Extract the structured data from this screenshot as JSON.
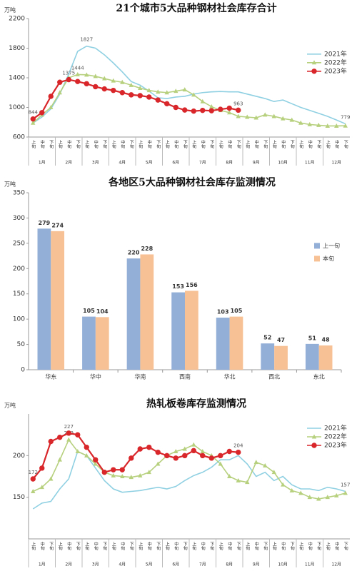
{
  "chart_data": [
    {
      "type": "line",
      "title": "21个城市5大品种钢材社会库存合计",
      "y_label": "万吨",
      "ylim": [
        600,
        2200
      ],
      "yticks": [
        600,
        1000,
        1400,
        1800,
        2200
      ],
      "grid": false,
      "legend": "right",
      "categories": [
        "上旬",
        "中旬",
        "下旬",
        "上旬",
        "中旬",
        "下旬",
        "上旬",
        "中旬",
        "下旬",
        "上旬",
        "中旬",
        "下旬",
        "上旬",
        "中旬",
        "下旬",
        "上旬",
        "中旬",
        "下旬",
        "上旬",
        "中旬",
        "下旬",
        "上旬",
        "中旬",
        "下旬",
        "上旬",
        "中旬",
        "下旬",
        "上旬",
        "中旬",
        "下旬",
        "上旬",
        "中旬",
        "下旬",
        "上旬",
        "中旬",
        "下旬"
      ],
      "x_groups": [
        "1月",
        "2月",
        "3月",
        "4月",
        "5月",
        "6月",
        "7月",
        "8月",
        "9月",
        "10月",
        "11月",
        "12月"
      ],
      "series": [
        {
          "name": "2021年",
          "color": "#8fd0e2",
          "marker": "none",
          "labels_at": [
            6,
            35
          ],
          "values": [
            790,
            870,
            980,
            1180,
            1450,
            1757,
            1827,
            1800,
            1710,
            1600,
            1480,
            1350,
            1300,
            1220,
            1130,
            1120,
            1140,
            1150,
            1180,
            1200,
            1210,
            1215,
            1210,
            1210,
            1180,
            1150,
            1120,
            1080,
            1100,
            1050,
            1000,
            960,
            920,
            880,
            830,
            779
          ]
        },
        {
          "name": "2022年",
          "color": "#b6d07e",
          "marker": "triangle",
          "labels_at": [
            5
          ],
          "values": [
            790,
            900,
            1000,
            1200,
            1400,
            1444,
            1440,
            1420,
            1390,
            1360,
            1340,
            1300,
            1260,
            1230,
            1210,
            1200,
            1220,
            1240,
            1170,
            1080,
            1010,
            960,
            930,
            880,
            870,
            860,
            900,
            880,
            850,
            830,
            790,
            770,
            760,
            750,
            750,
            752
          ]
        },
        {
          "name": "2023年",
          "color": "#d8262a",
          "marker": "circle",
          "labels_at": [
            0,
            4,
            23
          ],
          "values": [
            844,
            930,
            1150,
            1340,
            1375,
            1350,
            1320,
            1280,
            1250,
            1230,
            1200,
            1170,
            1160,
            1140,
            1100,
            1050,
            1000,
            965,
            950,
            960,
            955,
            975,
            990,
            963,
            null,
            null,
            null,
            null,
            null,
            null,
            null,
            null,
            null,
            null,
            null,
            null
          ]
        }
      ]
    },
    {
      "type": "bar",
      "title": "各地区5大品种钢材社会库存监测情况",
      "y_label": "万吨",
      "ylim": [
        0,
        350
      ],
      "yticks": [
        0,
        50,
        100,
        150,
        200,
        250,
        300,
        350
      ],
      "grid": false,
      "legend": "right",
      "data_labels": true,
      "categories": [
        "华东",
        "华中",
        "华南",
        "西南",
        "华北",
        "西北",
        "东北"
      ],
      "series": [
        {
          "name": "上一旬",
          "color": "#93afd8",
          "values": [
            279,
            105,
            220,
            153,
            103,
            52,
            51
          ]
        },
        {
          "name": "本旬",
          "color": "#f8c195",
          "values": [
            274,
            104,
            228,
            156,
            105,
            47,
            48
          ]
        }
      ]
    },
    {
      "type": "line",
      "title": "热轧板卷库存监测情况",
      "y_label": "万吨",
      "ylim": [
        100,
        250
      ],
      "yticks": [
        150,
        200
      ],
      "grid": false,
      "legend": "upper right",
      "categories": [
        "上旬",
        "中旬",
        "下旬",
        "上旬",
        "中旬",
        "下旬",
        "上旬",
        "中旬",
        "下旬",
        "上旬",
        "中旬",
        "下旬",
        "上旬",
        "中旬",
        "下旬",
        "上旬",
        "中旬",
        "下旬",
        "上旬",
        "中旬",
        "下旬",
        "上旬",
        "中旬",
        "下旬",
        "上旬",
        "中旬",
        "下旬",
        "上旬",
        "中旬",
        "下旬",
        "上旬",
        "中旬",
        "下旬",
        "上旬",
        "中旬",
        "下旬"
      ],
      "x_groups": [
        "1月",
        "2月",
        "3月",
        "4月",
        "5月",
        "6月",
        "7月",
        "8月",
        "9月",
        "10月",
        "11月",
        "12月"
      ],
      "series": [
        {
          "name": "2021年",
          "color": "#8fd0e2",
          "marker": "none",
          "labels_at": [
            35
          ],
          "values": [
            136,
            143,
            145,
            160,
            172,
            205,
            200,
            185,
            170,
            160,
            156,
            157,
            158,
            160,
            162,
            160,
            163,
            170,
            176,
            180,
            186,
            195,
            195,
            200,
            190,
            175,
            180,
            170,
            175,
            165,
            160,
            160,
            158,
            162,
            160,
            157
          ]
        },
        {
          "name": "2022年",
          "color": "#b6d07e",
          "marker": "triangle",
          "labels_at": [
            4
          ],
          "values": [
            157,
            162,
            172,
            195,
            219,
            205,
            200,
            190,
            180,
            176,
            175,
            174,
            176,
            180,
            190,
            200,
            205,
            208,
            213,
            205,
            200,
            190,
            175,
            170,
            168,
            192,
            188,
            180,
            165,
            158,
            155,
            150,
            148,
            150,
            152,
            155
          ]
        },
        {
          "name": "2023年",
          "color": "#d8262a",
          "marker": "circle",
          "labels_at": [
            0,
            4,
            23
          ],
          "values": [
            172,
            185,
            217,
            222,
            227,
            225,
            210,
            195,
            180,
            183,
            183,
            197,
            208,
            210,
            204,
            200,
            197,
            200,
            206,
            200,
            197,
            200,
            205,
            204,
            null,
            null,
            null,
            null,
            null,
            null,
            null,
            null,
            null,
            null,
            null,
            null
          ]
        }
      ]
    }
  ]
}
